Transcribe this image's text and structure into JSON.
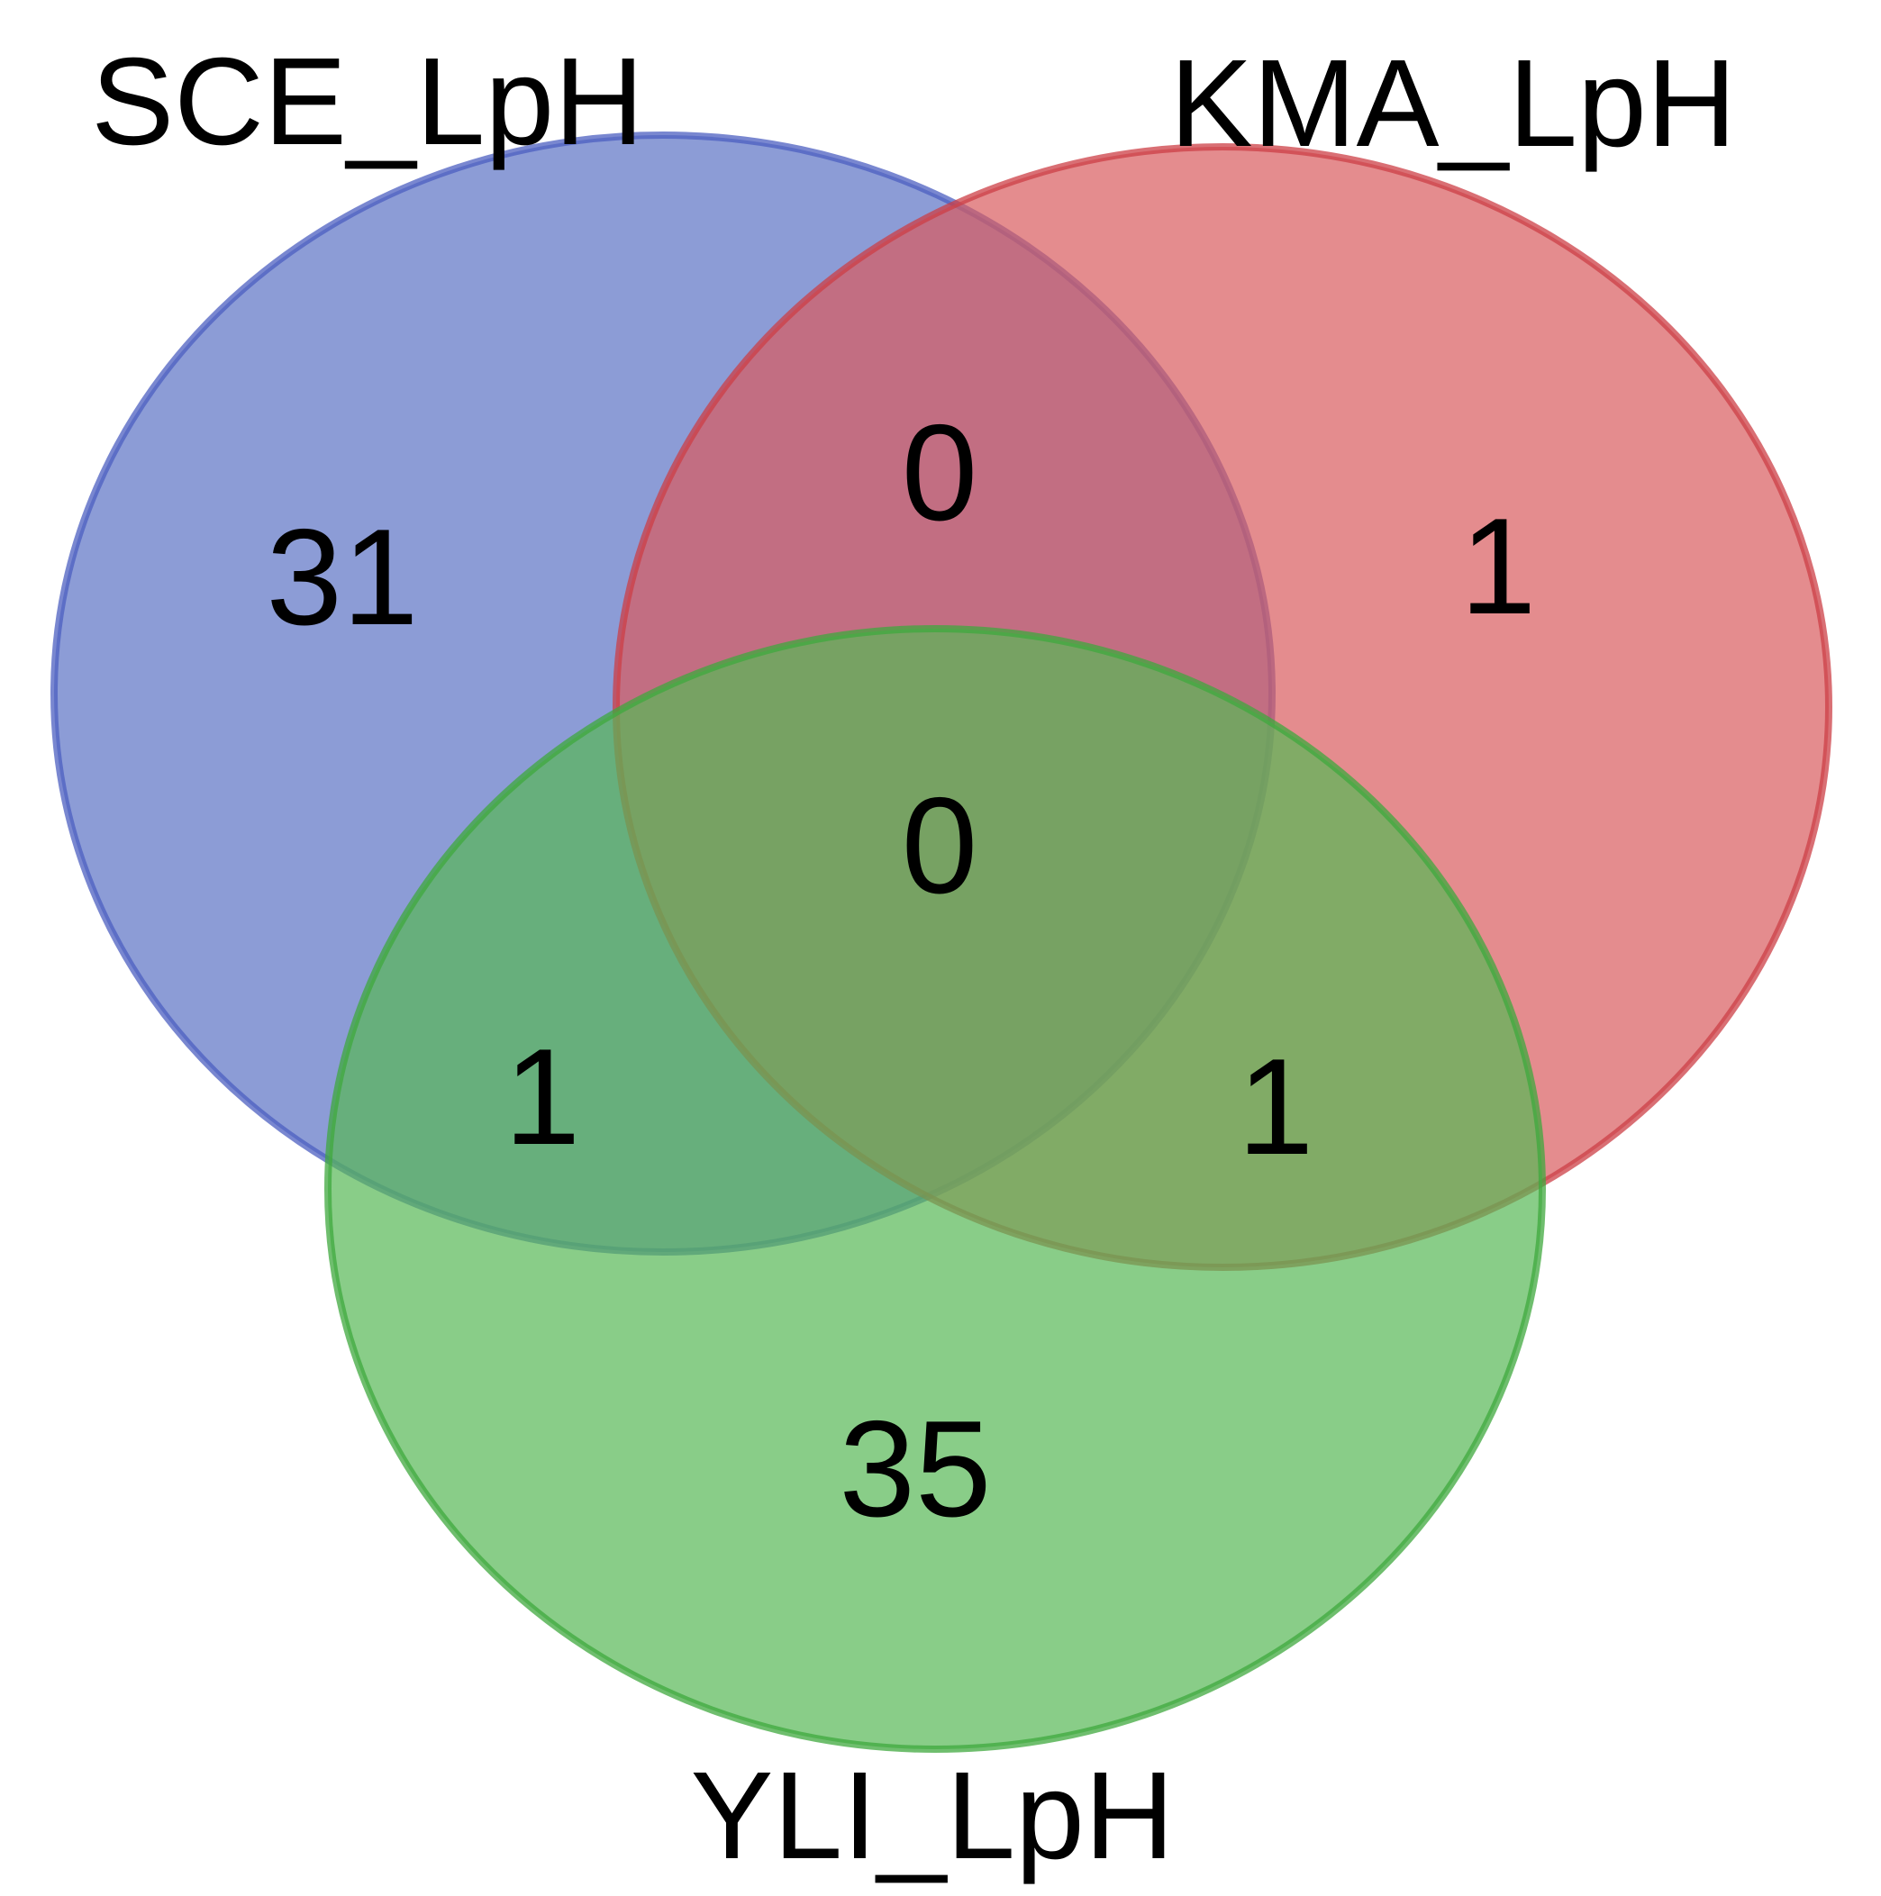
{
  "sets": [
    {
      "id": "sce",
      "label": "SCE_LpH",
      "fill": "#5b72c4",
      "stroke": "#4c5fc0"
    },
    {
      "id": "kma",
      "label": "KMA_LpH",
      "fill": "#d85b5e",
      "stroke": "#cc3f45"
    },
    {
      "id": "yli",
      "label": "YLI_LpH",
      "fill": "#57b855",
      "stroke": "#3fa83d"
    }
  ],
  "regions": {
    "sce_only": "31",
    "kma_only": "1",
    "yli_only": "35",
    "sce_kma": "0",
    "sce_yli": "1",
    "kma_yli": "1",
    "all": "0"
  }
}
